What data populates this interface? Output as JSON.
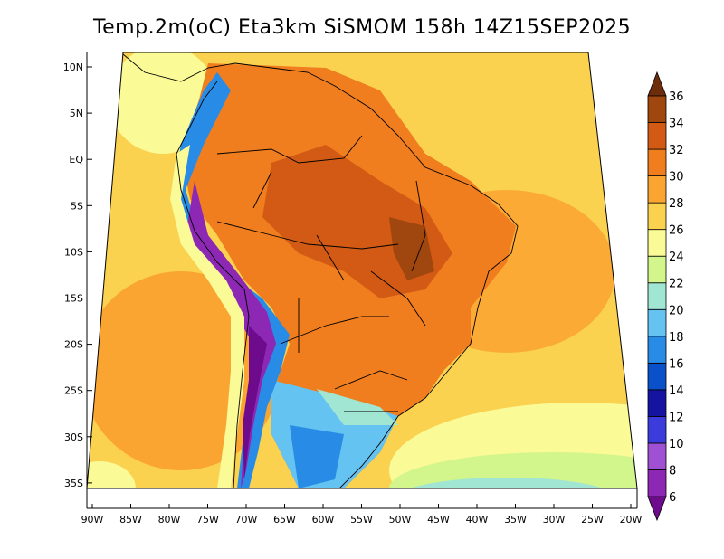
{
  "title": "Temp.2m(oC) Eta3km SiSMOM 158h 14Z15SEP2025",
  "lat_ticks": [
    "10N",
    "5N",
    "EQ",
    "5S",
    "10S",
    "15S",
    "20S",
    "25S",
    "30S",
    "35S"
  ],
  "lon_ticks": [
    "90W",
    "85W",
    "80W",
    "75W",
    "70W",
    "65W",
    "60W",
    "55W",
    "50W",
    "45W",
    "40W",
    "35W",
    "30W",
    "25W",
    "20W"
  ],
  "colorbar": {
    "labels": [
      "6",
      "8",
      "10",
      "12",
      "14",
      "16",
      "18",
      "20",
      "22",
      "24",
      "26",
      "28",
      "30",
      "32",
      "34",
      "36"
    ],
    "colors": [
      "#6e0a8c",
      "#8c28b4",
      "#a050d2",
      "#3c3cdc",
      "#1414a0",
      "#0a50c8",
      "#288ce6",
      "#64c3f0",
      "#a0e6d2",
      "#d2f58c",
      "#fafa96",
      "#fad250",
      "#faa532",
      "#f07d1e",
      "#d25a14",
      "#a0460f",
      "#6e2d0a"
    ]
  }
}
